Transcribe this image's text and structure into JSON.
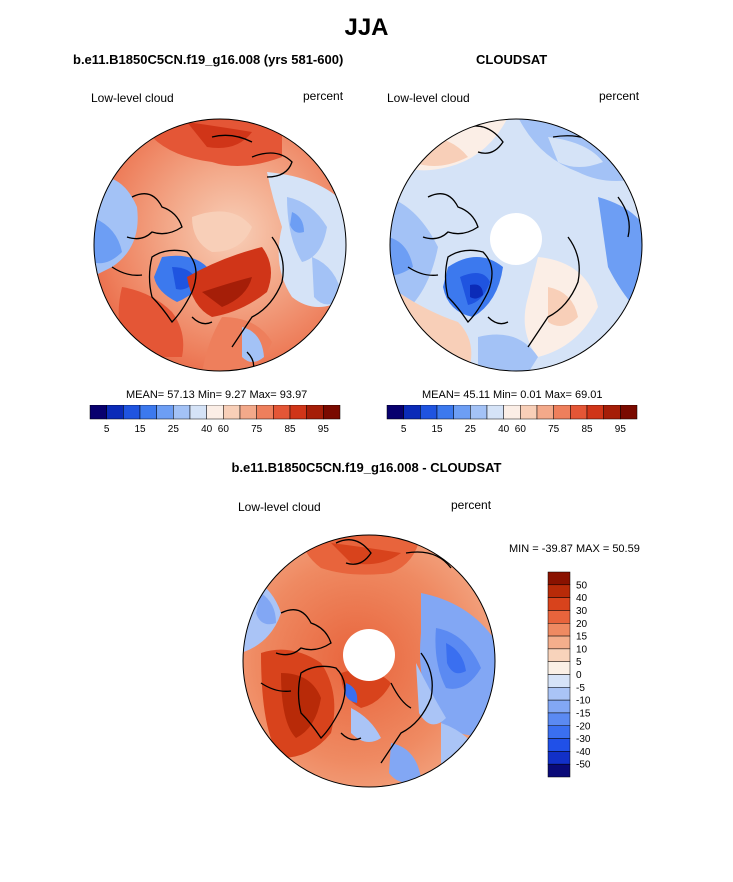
{
  "figure": {
    "title": "JJA",
    "colors": {
      "abs_scale": [
        "#08006e",
        "#0b2bb8",
        "#1f54e0",
        "#3c79ee",
        "#6d9ef4",
        "#a3c2f6",
        "#d5e3f7",
        "#fbeee6",
        "#f8cfb8",
        "#f3a98a",
        "#ee7f5c",
        "#e45636",
        "#d03518",
        "#a51e08",
        "#7a0a00"
      ],
      "diff_scale": [
        "#0a0a78",
        "#1230c8",
        "#2050e8",
        "#3a6ff0",
        "#5b8af2",
        "#82a7f4",
        "#aac4f6",
        "#d6e3f8",
        "#fbf0e6",
        "#f8d3bb",
        "#f4ae8c",
        "#ef8a62",
        "#e8643c",
        "#d8431c",
        "#b82a08",
        "#8a1200"
      ]
    }
  },
  "panels": {
    "model": {
      "title": "b.e11.B1850C5CN.f19_g16.008 (yrs 581-600)",
      "left_label": "Low-level cloud",
      "right_label": "percent",
      "stats": "MEAN=  57.13  Min=    9.27  Max=  93.97",
      "colorbar_labels": [
        "5",
        "15",
        "25",
        "40",
        "60",
        "75",
        "85",
        "95"
      ]
    },
    "obs": {
      "title": "CLOUDSAT",
      "left_label": "Low-level cloud",
      "right_label": "percent",
      "stats": "MEAN=  45.11  Min=    0.01  Max=  69.01",
      "colorbar_labels": [
        "5",
        "15",
        "25",
        "40",
        "60",
        "75",
        "85",
        "95"
      ]
    },
    "diff": {
      "title": "b.e11.B1850C5CN.f19_g16.008 - CLOUDSAT",
      "left_label": "Low-level cloud",
      "right_label": "percent",
      "stats": "MIN = -39.87 MAX =  50.59",
      "colorbar_labels": [
        "50",
        "40",
        "30",
        "20",
        "15",
        "10",
        "5",
        "0",
        "-5",
        "-10",
        "-15",
        "-20",
        "-30",
        "-40",
        "-50"
      ]
    }
  }
}
